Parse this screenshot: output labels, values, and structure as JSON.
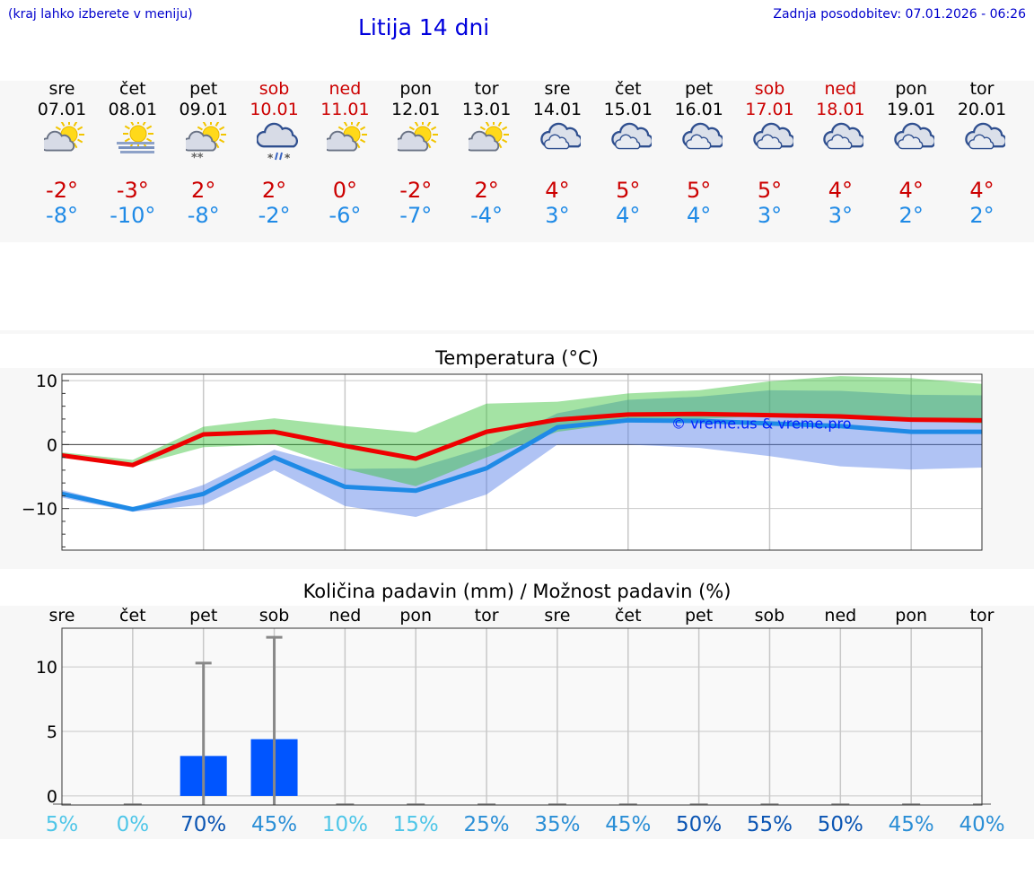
{
  "header": {
    "hint": "(kraj lahko izberete v meniju)",
    "title": "Litija 14 dni",
    "updated": "Zadnja posodobitev: 07.01.2026 - 06:26"
  },
  "colors": {
    "max_temp": "#cc0000",
    "min_temp": "#1f8ae6",
    "weekend": "#cc0000",
    "bar": "#0055ff"
  },
  "days": [
    {
      "name": "sre",
      "date": "07.01",
      "weekend": false,
      "icon": "partly-cloudy-icon",
      "max": "-2°",
      "min": "-8°"
    },
    {
      "name": "čet",
      "date": "08.01",
      "weekend": false,
      "icon": "sun-fog-icon",
      "max": "-3°",
      "min": "-10°"
    },
    {
      "name": "pet",
      "date": "09.01",
      "weekend": false,
      "icon": "partly-cloudy-snow-icon",
      "max": "2°",
      "min": "-8°"
    },
    {
      "name": "sob",
      "date": "10.01",
      "weekend": true,
      "icon": "cloud-sleet-icon",
      "max": "2°",
      "min": "-2°"
    },
    {
      "name": "ned",
      "date": "11.01",
      "weekend": true,
      "icon": "partly-cloudy-icon",
      "max": "0°",
      "min": "-6°"
    },
    {
      "name": "pon",
      "date": "12.01",
      "weekend": false,
      "icon": "partly-cloudy-icon",
      "max": "-2°",
      "min": "-7°"
    },
    {
      "name": "tor",
      "date": "13.01",
      "weekend": false,
      "icon": "partly-cloudy-icon",
      "max": "2°",
      "min": "-4°"
    },
    {
      "name": "sre",
      "date": "14.01",
      "weekend": false,
      "icon": "cloudy-icon",
      "max": "4°",
      "min": "3°"
    },
    {
      "name": "čet",
      "date": "15.01",
      "weekend": false,
      "icon": "cloudy-icon",
      "max": "5°",
      "min": "4°"
    },
    {
      "name": "pet",
      "date": "16.01",
      "weekend": false,
      "icon": "cloudy-icon",
      "max": "5°",
      "min": "4°"
    },
    {
      "name": "sob",
      "date": "17.01",
      "weekend": true,
      "icon": "cloudy-icon",
      "max": "5°",
      "min": "3°"
    },
    {
      "name": "ned",
      "date": "18.01",
      "weekend": true,
      "icon": "cloudy-icon",
      "max": "4°",
      "min": "3°"
    },
    {
      "name": "pon",
      "date": "19.01",
      "weekend": false,
      "icon": "cloudy-icon",
      "max": "4°",
      "min": "2°"
    },
    {
      "name": "tor",
      "date": "20.01",
      "weekend": false,
      "icon": "cloudy-icon",
      "max": "4°",
      "min": "2°"
    }
  ],
  "chart_data": [
    {
      "type": "line",
      "title": "Temperatura (°C)",
      "ylabel": "°C",
      "ylim": [
        -16.5,
        11
      ],
      "yticks": [
        "10",
        "0",
        "−10"
      ],
      "ytick_values": [
        10,
        0,
        -10
      ],
      "watermark": "© vreme.us & vreme.pro",
      "series": [
        {
          "name": "max",
          "color": "#ee0000",
          "values": [
            -1.7,
            -3.2,
            1.6,
            2,
            -0.2,
            -2.2,
            2,
            3.9,
            4.7,
            4.8,
            4.6,
            4.4,
            3.9,
            3.8
          ]
        },
        {
          "name": "min",
          "color": "#1f8ae6",
          "values": [
            -7.7,
            -10.1,
            -7.7,
            -2,
            -6.6,
            -7.2,
            -3.7,
            2.7,
            3.8,
            3.7,
            3.3,
            2.9,
            2,
            2
          ]
        }
      ],
      "max_range": {
        "low": [
          -1.6,
          -3.4,
          -0.4,
          0,
          -3.8,
          -6.5,
          -2,
          2,
          3.5,
          4,
          4.5,
          4,
          3.7,
          3.3
        ],
        "high": [
          -1.2,
          -2.4,
          2.8,
          4.1,
          2.9,
          1.9,
          6.4,
          6.7,
          8,
          8.5,
          9.9,
          10.7,
          10.4,
          9.5
        ]
      },
      "min_range": {
        "low": [
          -8.3,
          -10.5,
          -9.4,
          -4,
          -9.6,
          -11.3,
          -7.8,
          0,
          0,
          -0.5,
          -1.8,
          -3.4,
          -3.9,
          -3.6
        ],
        "high": [
          -7.1,
          -9.9,
          -6.3,
          -0.8,
          -3.8,
          -3.7,
          -0.4,
          4.9,
          7,
          7.5,
          8.5,
          8.4,
          7.8,
          7.7
        ]
      }
    },
    {
      "type": "bar",
      "title": "Količina padavin (mm) / Možnost padavin (%)",
      "categories": [
        "sre",
        "čet",
        "pet",
        "sob",
        "ned",
        "pon",
        "tor",
        "sre",
        "čet",
        "pet",
        "sob",
        "ned",
        "pon",
        "tor"
      ],
      "values": [
        0,
        0,
        3.1,
        4.4,
        0,
        0,
        0,
        0,
        0,
        0,
        0,
        0,
        0,
        0
      ],
      "error_high": [
        0,
        0,
        10.3,
        12.3,
        0,
        0,
        0,
        0,
        0,
        0,
        0,
        0,
        0,
        0
      ],
      "ylim": [
        -0.7,
        13
      ],
      "yticks": [
        "10",
        "5",
        "0"
      ],
      "ytick_values": [
        10,
        5,
        0
      ],
      "probability": [
        "5%",
        "0%",
        "70%",
        "45%",
        "10%",
        "15%",
        "25%",
        "35%",
        "45%",
        "50%",
        "55%",
        "50%",
        "45%",
        "40%"
      ],
      "probability_values": [
        5,
        0,
        70,
        45,
        10,
        15,
        25,
        35,
        45,
        50,
        55,
        50,
        45,
        40
      ]
    }
  ]
}
